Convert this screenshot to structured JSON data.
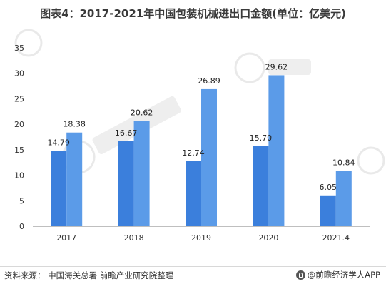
{
  "title": "图表4：2017-2021年中国包装机械进出口金额(单位：亿美元)",
  "source": "资料来源：  中国海关总署 前瞻产业研究院整理",
  "brand": "@前瞻经济学人APP",
  "colors": {
    "series_dark": "#3b7fdc",
    "series_light": "#5b9be8",
    "axis": "#bfbfbf"
  },
  "chart_data": {
    "type": "bar",
    "title": "图表4：2017-2021年中国包装机械进出口金额(单位：亿美元)",
    "categories": [
      "2017",
      "2018",
      "2019",
      "2020",
      "2021.4"
    ],
    "series": [
      {
        "values": [
          14.79,
          16.67,
          12.74,
          15.7,
          6.05
        ]
      },
      {
        "values": [
          18.38,
          20.62,
          26.89,
          29.62,
          10.84
        ]
      }
    ],
    "value_labels": [
      [
        "14.79",
        "16.67",
        "12.74",
        "15.70",
        "6.05"
      ],
      [
        "18.38",
        "20.62",
        "26.89",
        "29.62",
        "10.84"
      ]
    ],
    "yticks": [
      "0",
      "5",
      "10",
      "15",
      "20",
      "25",
      "30",
      "35"
    ],
    "ylim": [
      0,
      35
    ],
    "grid": false,
    "legend": "none"
  }
}
